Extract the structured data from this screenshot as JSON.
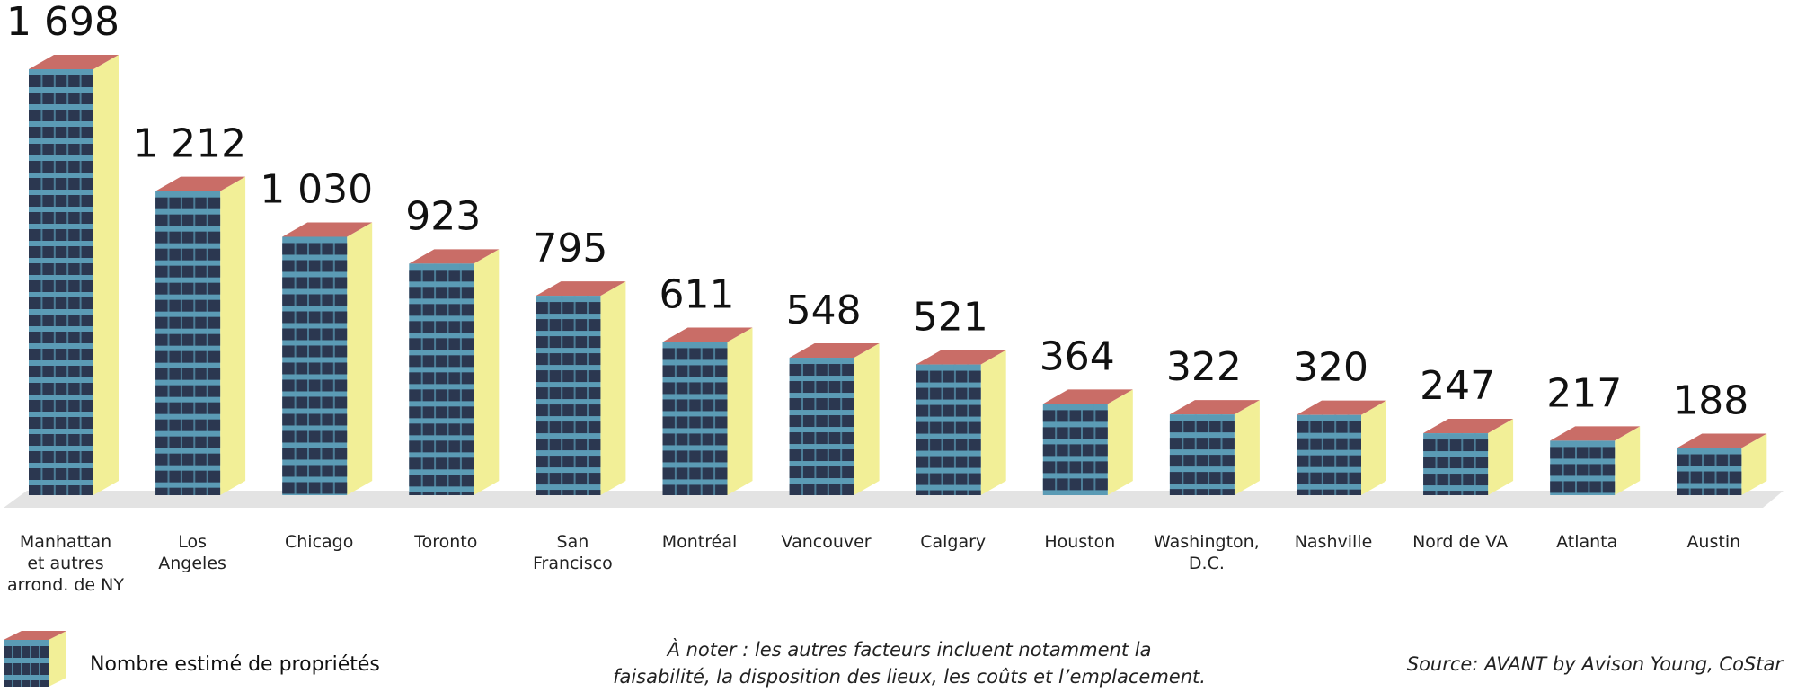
{
  "chart_data": {
    "type": "bar",
    "title": "",
    "xlabel": "",
    "ylabel": "",
    "categories": [
      "Manhattan et autres arrond. de NY",
      "Los Angeles",
      "Chicago",
      "Toronto",
      "San Francisco",
      "Montréal",
      "Vancouver",
      "Calgary",
      "Houston",
      "Washington, D.C.",
      "Nashville",
      "Nord de VA",
      "Atlanta",
      "Austin"
    ],
    "category_lines": [
      [
        "Manhattan",
        "et autres",
        "arrond. de NY"
      ],
      [
        "Los",
        "Angeles"
      ],
      [
        "Chicago"
      ],
      [
        "Toronto"
      ],
      [
        "San",
        "Francisco"
      ],
      [
        "Montréal"
      ],
      [
        "Vancouver"
      ],
      [
        "Calgary"
      ],
      [
        "Houston"
      ],
      [
        "Washington,",
        "D.C."
      ],
      [
        "Nashville"
      ],
      [
        "Nord de VA"
      ],
      [
        "Atlanta"
      ],
      [
        "Austin"
      ]
    ],
    "values": [
      1698,
      1212,
      1030,
      923,
      795,
      611,
      548,
      521,
      364,
      322,
      320,
      247,
      217,
      188
    ],
    "value_labels": [
      "1 698",
      "1 212",
      "1 030",
      "923",
      "795",
      "611",
      "548",
      "521",
      "364",
      "322",
      "320",
      "247",
      "217",
      "188"
    ],
    "series": [
      {
        "name": "Nombre estimé de propriétés",
        "values": [
          1698,
          1212,
          1030,
          923,
          795,
          611,
          548,
          521,
          364,
          322,
          320,
          247,
          217,
          188
        ]
      }
    ],
    "ylim": [
      0,
      1698
    ],
    "grid": false,
    "legend_position": "bottom-left"
  },
  "legend": {
    "label": "Nombre estimé de propriétés"
  },
  "note": {
    "lines": [
      "À noter : les autres facteurs incluent notamment la",
      "faisabilité, la disposition des lieux, les coûts et l’emplacement."
    ]
  },
  "source": {
    "text": "Source: AVANT by Avison Young, CoStar"
  },
  "colors": {
    "roof": "#c96d67",
    "side": "#f2ef97",
    "front_light": "#5b9bb5",
    "front_dark": "#2b3750",
    "floor": "#e3e3e3"
  }
}
